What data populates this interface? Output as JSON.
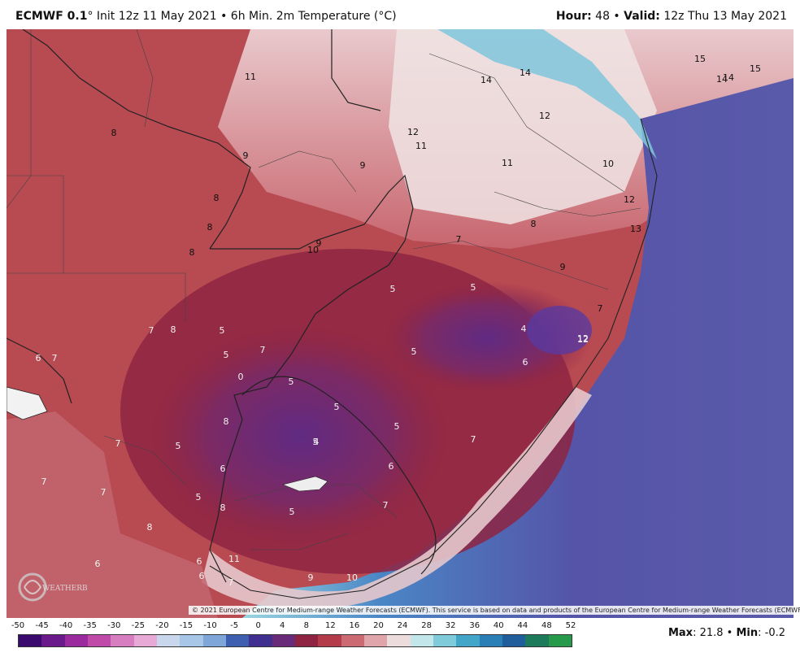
{
  "header": {
    "model": "ECMWF 0.1",
    "init": "° Init 12z 11 May 2021 • 6h Min. 2m Temperature (°C)",
    "hour_label": "Hour:",
    "hour_value": "48",
    "sep": " • ",
    "valid_label": "Valid:",
    "valid_value": "12z Thu 13 May 2021"
  },
  "copyright": "© 2021 European Centre for Medium-range Weather Forecasts (ECMWF). This service is based on data and products of the European Centre for Medium-range Weather Forecasts (ECMWF).",
  "logo_text": "WEATHERBELL",
  "colorbar": {
    "ticks": [
      "-50",
      "-45",
      "-40",
      "-35",
      "-30",
      "-25",
      "-20",
      "-15",
      "-10",
      "-5",
      "0",
      "4",
      "8",
      "12",
      "16",
      "20",
      "24",
      "28",
      "32",
      "36",
      "40",
      "44",
      "48",
      "52"
    ],
    "colors": [
      "#3b0a6e",
      "#6a1a8a",
      "#9a2a9e",
      "#c04aa8",
      "#d77ec0",
      "#e9a9d6",
      "#c9d7ec",
      "#a8c6e8",
      "#7fa6d8",
      "#3e5fb0",
      "#3f2f8f",
      "#6a2a7a",
      "#8e2442",
      "#b33b4a",
      "#cc6a74",
      "#e0a5aa",
      "#ecdcdc",
      "#c3e6ea",
      "#7fcbd9",
      "#43a6c8",
      "#2a7fb6",
      "#1f5e9a",
      "#1d7a5a",
      "#26994a"
    ]
  },
  "maxmin": {
    "max_label": "Max",
    "max_value": ": 21.8 • ",
    "min_label": "Min",
    "min_value": ": -0.2"
  },
  "map_labels": [
    {
      "t": "11"
    },
    {
      "t": "8"
    },
    {
      "t": "9"
    },
    {
      "t": "9"
    },
    {
      "t": "8"
    },
    {
      "t": "8"
    },
    {
      "t": "8"
    },
    {
      "t": "9"
    },
    {
      "t": "10"
    },
    {
      "t": "12"
    },
    {
      "t": "11"
    },
    {
      "t": "14"
    },
    {
      "t": "14"
    },
    {
      "t": "15"
    },
    {
      "t": "14"
    },
    {
      "t": "14"
    },
    {
      "t": "15"
    },
    {
      "t": "12"
    },
    {
      "t": "11"
    },
    {
      "t": "10"
    },
    {
      "t": "12"
    },
    {
      "t": "8"
    },
    {
      "t": "13"
    },
    {
      "t": "9"
    },
    {
      "t": "7"
    },
    {
      "t": "7"
    },
    {
      "t": "12"
    },
    {
      "t": "5"
    },
    {
      "t": "5"
    },
    {
      "t": "4"
    },
    {
      "t": "6"
    },
    {
      "t": "5"
    },
    {
      "t": "5"
    },
    {
      "t": "7"
    },
    {
      "t": "5"
    },
    {
      "t": "5"
    },
    {
      "t": "7"
    },
    {
      "t": "8"
    },
    {
      "t": "7"
    },
    {
      "t": "0"
    },
    {
      "t": "5"
    },
    {
      "t": "5"
    },
    {
      "t": "5"
    },
    {
      "t": "4"
    },
    {
      "t": "8"
    },
    {
      "t": "7"
    },
    {
      "t": "5"
    },
    {
      "t": "6"
    },
    {
      "t": "6"
    },
    {
      "t": "7"
    },
    {
      "t": "7"
    },
    {
      "t": "5"
    },
    {
      "t": "8"
    },
    {
      "t": "5"
    },
    {
      "t": "7"
    },
    {
      "t": "8"
    },
    {
      "t": "6"
    },
    {
      "t": "6"
    },
    {
      "t": "6"
    },
    {
      "t": "11"
    },
    {
      "t": "7"
    },
    {
      "t": "9"
    },
    {
      "t": "10"
    },
    {
      "t": "7"
    },
    {
      "t": "6"
    },
    {
      "t": "12"
    }
  ]
}
